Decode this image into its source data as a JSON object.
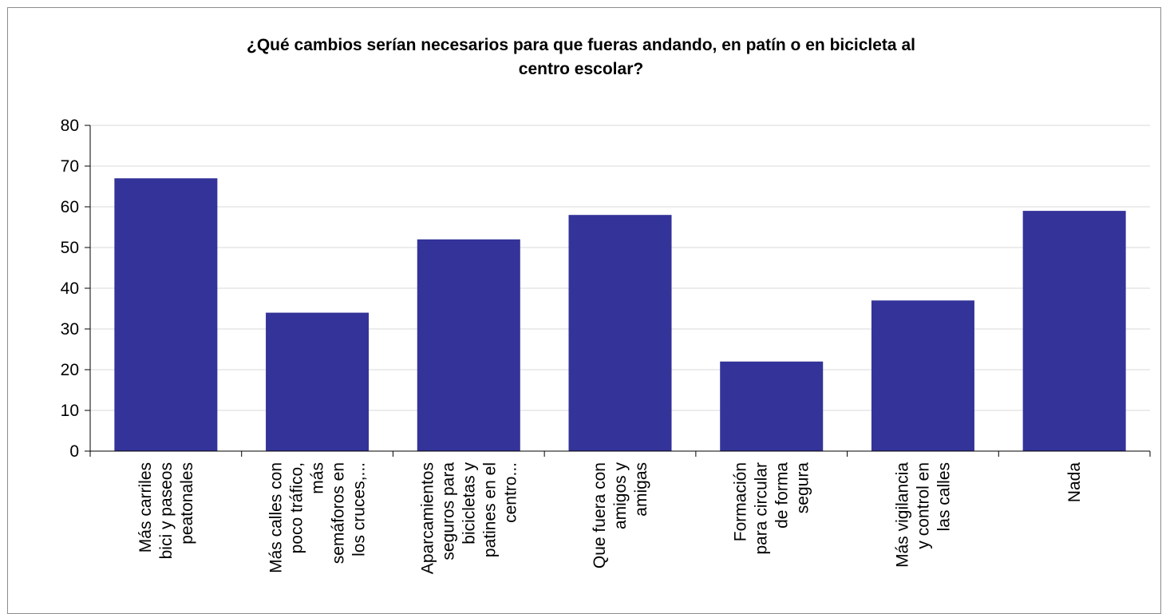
{
  "chart_data": {
    "type": "bar",
    "title": "¿Qué cambios serían necesarios para que fueras andando, en patín o en bicicleta al\ncentro escolar?",
    "categories": [
      [
        "Más carriles",
        "bici y paseos",
        "peatonales"
      ],
      [
        "Más calles con",
        "poco tráfico,",
        "más",
        "semáforos en",
        "los cruces,..."
      ],
      [
        "Aparcamientos",
        "seguros para",
        "bicicletas y",
        "patines en el",
        "centro..."
      ],
      [
        "Que fuera con",
        "amigos y",
        "amigas"
      ],
      [
        "Formación",
        "para circular",
        "de forma",
        "segura"
      ],
      [
        "Más vigilancia",
        "y control en",
        "las calles"
      ],
      [
        "Nada"
      ]
    ],
    "values": [
      67,
      34,
      52,
      58,
      22,
      37,
      59
    ],
    "ylim": [
      0,
      80
    ],
    "yticks": [
      "0",
      "10",
      "20",
      "30",
      "40",
      "50",
      "60",
      "70",
      "80"
    ],
    "grid": true,
    "bar_color": "#333399",
    "grid_color": "#d9d9d9",
    "xlabel": "",
    "ylabel": ""
  }
}
